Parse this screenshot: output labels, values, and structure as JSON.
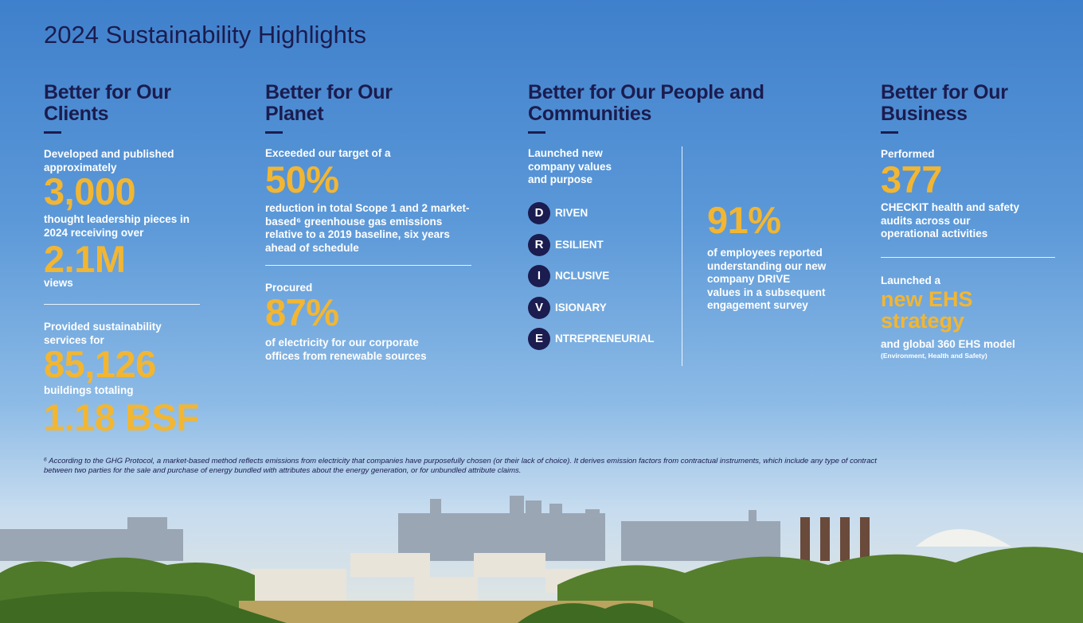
{
  "header": {
    "title": "2024 Sustainability Highlights"
  },
  "columns": [
    {
      "heading": "Better for Our Clients",
      "items": [
        {
          "intro": "Developed and published approximately",
          "figure": "3,000"
        },
        {
          "intro": "thought leadership pieces in 2024 receiving over",
          "figure": "2.1M",
          "outro": "views"
        },
        {
          "intro": "Provided sustainability services for",
          "figure": "85,126"
        },
        {
          "intro": "buildings totaling",
          "figure": "1.18 BSF"
        }
      ]
    },
    {
      "heading": "Better for Our Planet",
      "items": [
        {
          "intro": "Exceeded our target of a",
          "figure": "50%",
          "outro": "reduction in total Scope 1 and 2 market-based⁶ greenhouse gas emissions relative to a 2019 baseline, six years ahead of schedule"
        },
        {
          "intro": "Procured",
          "figure": "87%",
          "outro": "of electricity for our corporate offices from renewable sources"
        }
      ]
    },
    {
      "heading": "Better for Our People and Communities",
      "intro": "Launched new company values and purpose",
      "values": [
        {
          "letter": "D",
          "rest": "RIVEN"
        },
        {
          "letter": "R",
          "rest": "ESILIENT"
        },
        {
          "letter": "I",
          "rest": "NCLUSIVE"
        },
        {
          "letter": "V",
          "rest": "ISIONARY"
        },
        {
          "letter": "E",
          "rest": "NTREPRENEURIAL"
        }
      ],
      "figure": "91%",
      "outro": "of employees reported understanding our new company DRIVE values in a subsequent engagement survey"
    },
    {
      "heading": "Better for Our Business",
      "items": [
        {
          "intro": "Performed",
          "figure": "377",
          "outro": "CHECKIT health and safety audits across our operational activities"
        },
        {
          "intro": "Launched a",
          "figure": "new EHS strategy",
          "outro": "and global 360 EHS model",
          "note": "(Environment, Health and Safety)"
        }
      ]
    }
  ],
  "footnote": "⁶ According to the GHG Protocol, a market-based method reflects emissions from electricity that companies have purposefully chosen (or their lack of choice). It derives emission factors from contractual instruments, which include any type of contract between two parties for the sale and purchase of energy bundled with attributes about the energy generation, or for unbundled attribute claims."
}
